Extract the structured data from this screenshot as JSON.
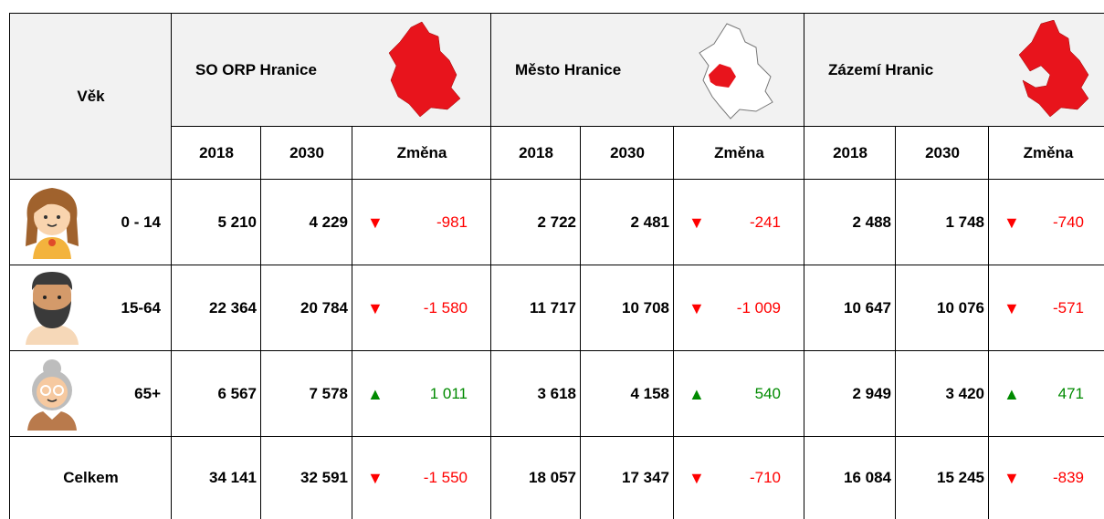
{
  "header": {
    "age_label": "Věk",
    "groups": [
      "SO ORP Hranice",
      "Město Hranice",
      "Zázemí Hranic"
    ],
    "subheaders": [
      "2018",
      "2030",
      "Změna"
    ]
  },
  "rows": [
    {
      "label": "0 - 14",
      "cells": [
        [
          "5 210",
          "4 229",
          "-981"
        ],
        [
          "2 722",
          "2 481",
          "-241"
        ],
        [
          "2 488",
          "1 748",
          "-740"
        ]
      ]
    },
    {
      "label": "15-64",
      "cells": [
        [
          "22 364",
          "20 784",
          "-1 580"
        ],
        [
          "11 717",
          "10 708",
          "-1 009"
        ],
        [
          "10 647",
          "10 076",
          "-571"
        ]
      ]
    },
    {
      "label": "65+",
      "cells": [
        [
          "6 567",
          "7 578",
          "1 011"
        ],
        [
          "3 618",
          "4 158",
          "540"
        ],
        [
          "2 949",
          "3 420",
          "471"
        ]
      ]
    },
    {
      "label": "Celkem",
      "cells": [
        [
          "34 141",
          "32 591",
          "-1 550"
        ],
        [
          "18 057",
          "17 347",
          "-710"
        ],
        [
          "16 084",
          "15 245",
          "-839"
        ]
      ]
    }
  ]
}
